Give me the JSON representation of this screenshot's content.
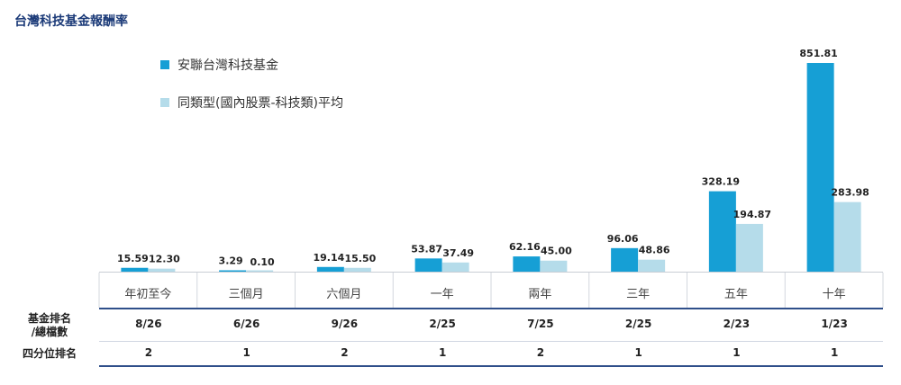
{
  "title": "台灣科技基金報酬率",
  "colors": {
    "fund": "#169fd5",
    "peer": "#b5dcea",
    "rule": "#2f4f8a"
  },
  "chart_data": {
    "type": "bar",
    "categories": [
      "年初至今",
      "三個月",
      "六個月",
      "一年",
      "兩年",
      "三年",
      "五年",
      "十年"
    ],
    "series": [
      {
        "name": "安聯台灣科技基金",
        "values": [
          15.59,
          3.29,
          19.14,
          53.87,
          62.16,
          96.06,
          328.19,
          851.81
        ],
        "labels": [
          "15.59",
          "3.29",
          "19.14",
          "53.87",
          "62.16",
          "96.06",
          "328.19",
          "851.81"
        ]
      },
      {
        "name": "同類型(國內股票-科技類)平均",
        "values": [
          12.3,
          0.1,
          15.5,
          37.49,
          45.0,
          48.86,
          194.87,
          283.98
        ],
        "labels": [
          "12.30",
          "0.10",
          "15.50",
          "37.49",
          "45.00",
          "48.86",
          "194.87",
          "283.98"
        ]
      }
    ],
    "title": "台灣科技基金報酬率",
    "legend": "top-left"
  },
  "table": {
    "rows": [
      {
        "label_lines": [
          "基金排名",
          "/總檔數"
        ],
        "values": [
          "8/26",
          "6/26",
          "9/26",
          "2/25",
          "7/25",
          "2/25",
          "2/23",
          "1/23"
        ]
      },
      {
        "label_lines": [
          "四分位排名"
        ],
        "values": [
          "2",
          "1",
          "2",
          "1",
          "2",
          "1",
          "1",
          "1"
        ]
      }
    ]
  }
}
